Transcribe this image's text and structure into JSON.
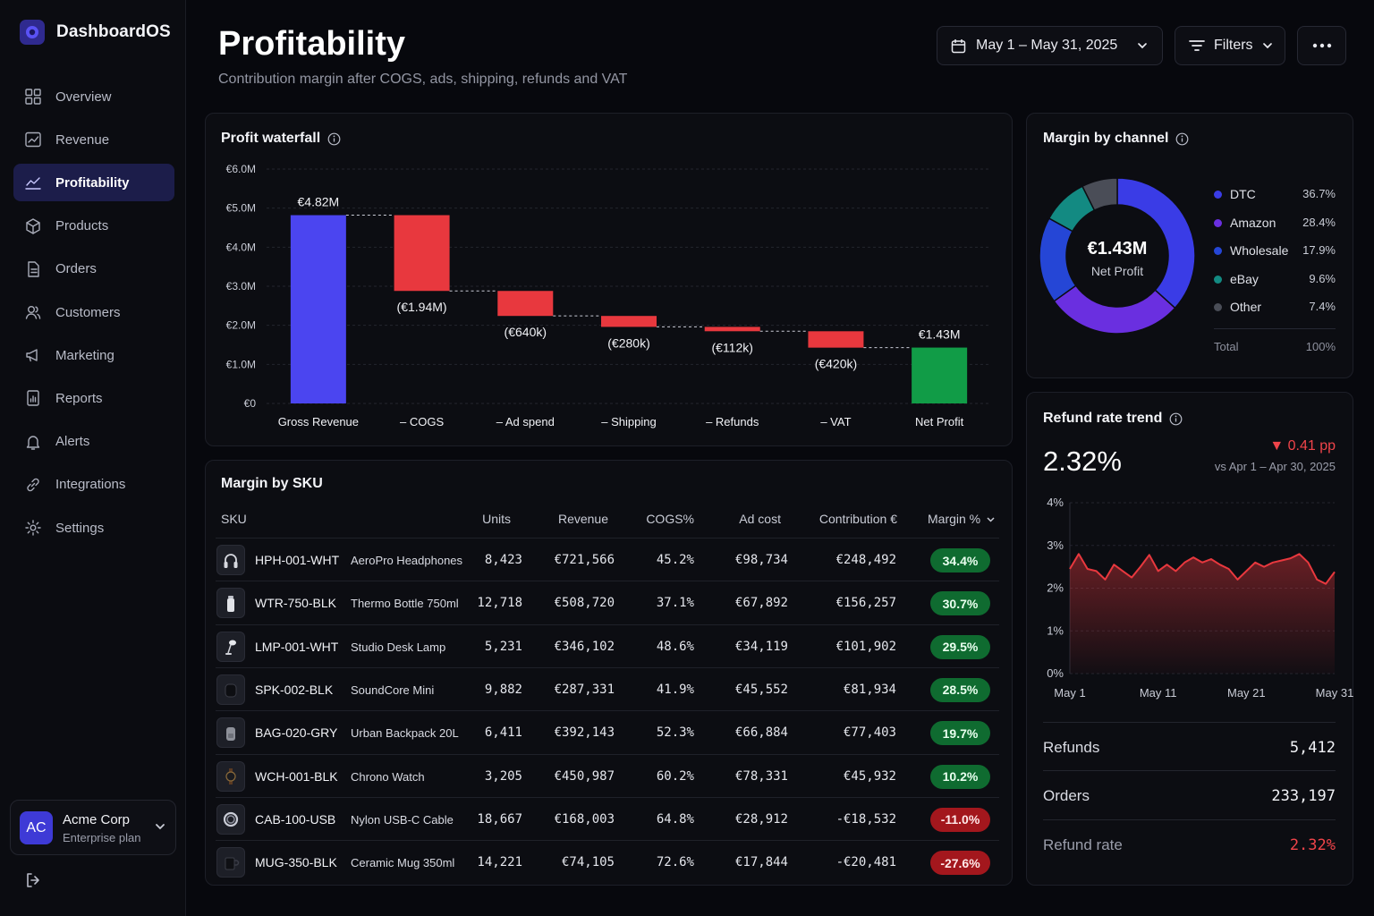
{
  "app": {
    "name": "DashboardOS"
  },
  "sidebar": {
    "items": [
      {
        "label": "Overview",
        "icon": "grid-icon"
      },
      {
        "label": "Revenue",
        "icon": "revenue-chart-icon"
      },
      {
        "label": "Profitability",
        "icon": "trend-line-icon",
        "active": true
      },
      {
        "label": "Products",
        "icon": "box-icon"
      },
      {
        "label": "Orders",
        "icon": "document-icon"
      },
      {
        "label": "Customers",
        "icon": "users-icon"
      },
      {
        "label": "Marketing",
        "icon": "megaphone-icon"
      },
      {
        "label": "Reports",
        "icon": "report-icon"
      },
      {
        "label": "Alerts",
        "icon": "bell-icon"
      },
      {
        "label": "Integrations",
        "icon": "link-icon"
      },
      {
        "label": "Settings",
        "icon": "gear-icon"
      }
    ],
    "account": {
      "initials": "AC",
      "name": "Acme Corp",
      "plan": "Enterprise plan"
    }
  },
  "header": {
    "title": "Profitability",
    "subtitle": "Contribution margin after COGS, ads, shipping, refunds and VAT",
    "date_range": "May 1 – May 31, 2025",
    "filters_label": "Filters"
  },
  "waterfall": {
    "title": "Profit waterfall",
    "chart_data": {
      "type": "bar",
      "subtype": "waterfall",
      "categories": [
        "Gross Revenue",
        "– COGS",
        "– Ad spend",
        "– Shipping",
        "– Refunds",
        "– VAT",
        "Net Profit"
      ],
      "values": [
        4.82,
        -1.94,
        -0.64,
        -0.28,
        -0.112,
        -0.42,
        1.43
      ],
      "unit": "€M",
      "data_labels": [
        "€4.82M",
        "(€1.94M)",
        "(€640k)",
        "(€280k)",
        "(€112k)",
        "(€420k)",
        "€1.43M"
      ],
      "y_ticks": [
        "€0",
        "€1.0M",
        "€2.0M",
        "€3.0M",
        "€4.0M",
        "€5.0M",
        "€6.0M"
      ],
      "ylim": [
        0,
        6
      ],
      "grid": true,
      "colors": {
        "total": "#4b45f0",
        "decrease": "#e8383e",
        "result": "#119c47"
      }
    }
  },
  "channel": {
    "title": "Margin by channel",
    "center_value": "€1.43M",
    "center_label": "Net Profit",
    "total_label": "Total",
    "total_value": "100%",
    "chart_data": {
      "type": "pie",
      "subtype": "donut",
      "categories": [
        "DTC",
        "Amazon",
        "Wholesale",
        "eBay",
        "Other"
      ],
      "values": [
        36.7,
        28.4,
        17.9,
        9.6,
        7.4
      ],
      "display": [
        "36.7%",
        "28.4%",
        "17.9%",
        "9.6%",
        "7.4%"
      ],
      "colors": [
        "#3a3ce6",
        "#6a2fe0",
        "#2546d6",
        "#138a82",
        "#4a4d57"
      ]
    }
  },
  "sku_table": {
    "title": "Margin by SKU",
    "columns": [
      "SKU",
      "Units",
      "Revenue",
      "COGS%",
      "Ad cost",
      "Contribution €",
      "Margin %"
    ],
    "rows": [
      {
        "sku": "HPH-001-WHT",
        "product": "AeroPro Headphones",
        "units": "8,423",
        "revenue": "€721,566",
        "cogs": "45.2%",
        "ad_cost": "€98,734",
        "contribution": "€248,492",
        "margin": "34.4%",
        "margin_sign": "pos",
        "thumb_icon": "headphones-icon"
      },
      {
        "sku": "WTR-750-BLK",
        "product": "Thermo Bottle 750ml",
        "units": "12,718",
        "revenue": "€508,720",
        "cogs": "37.1%",
        "ad_cost": "€67,892",
        "contribution": "€156,257",
        "margin": "30.7%",
        "margin_sign": "pos",
        "thumb_icon": "bottle-icon"
      },
      {
        "sku": "LMP-001-WHT",
        "product": "Studio Desk Lamp",
        "units": "5,231",
        "revenue": "€346,102",
        "cogs": "48.6%",
        "ad_cost": "€34,119",
        "contribution": "€101,902",
        "margin": "29.5%",
        "margin_sign": "pos",
        "thumb_icon": "lamp-icon"
      },
      {
        "sku": "SPK-002-BLK",
        "product": "SoundCore Mini",
        "units": "9,882",
        "revenue": "€287,331",
        "cogs": "41.9%",
        "ad_cost": "€45,552",
        "contribution": "€81,934",
        "margin": "28.5%",
        "margin_sign": "pos",
        "thumb_icon": "speaker-icon"
      },
      {
        "sku": "BAG-020-GRY",
        "product": "Urban Backpack 20L",
        "units": "6,411",
        "revenue": "€392,143",
        "cogs": "52.3%",
        "ad_cost": "€66,884",
        "contribution": "€77,403",
        "margin": "19.7%",
        "margin_sign": "pos",
        "thumb_icon": "backpack-icon"
      },
      {
        "sku": "WCH-001-BLK",
        "product": "Chrono Watch",
        "units": "3,205",
        "revenue": "€450,987",
        "cogs": "60.2%",
        "ad_cost": "€78,331",
        "contribution": "€45,932",
        "margin": "10.2%",
        "margin_sign": "pos",
        "thumb_icon": "watch-icon"
      },
      {
        "sku": "CAB-100-USB",
        "product": "Nylon USB-C Cable",
        "units": "18,667",
        "revenue": "€168,003",
        "cogs": "64.8%",
        "ad_cost": "€28,912",
        "contribution": "-€18,532",
        "margin": "-11.0%",
        "margin_sign": "neg",
        "thumb_icon": "cable-icon"
      },
      {
        "sku": "MUG-350-BLK",
        "product": "Ceramic Mug 350ml",
        "units": "14,221",
        "revenue": "€74,105",
        "cogs": "72.6%",
        "ad_cost": "€17,844",
        "contribution": "-€20,481",
        "margin": "-27.6%",
        "margin_sign": "neg",
        "thumb_icon": "mug-icon"
      }
    ]
  },
  "refund": {
    "title": "Refund rate trend",
    "current": "2.32%",
    "delta": "▼ 0.41 pp",
    "compare": "vs Apr 1 – Apr 30, 2025",
    "chart_data": {
      "type": "area",
      "x": [
        "May 1",
        "May 2",
        "May 3",
        "May 4",
        "May 5",
        "May 6",
        "May 7",
        "May 8",
        "May 9",
        "May 10",
        "May 11",
        "May 12",
        "May 13",
        "May 14",
        "May 15",
        "May 16",
        "May 17",
        "May 18",
        "May 19",
        "May 20",
        "May 21",
        "May 22",
        "May 23",
        "May 24",
        "May 25",
        "May 26",
        "May 27",
        "May 28",
        "May 29",
        "May 30",
        "May 31"
      ],
      "values": [
        2.45,
        2.8,
        2.45,
        2.4,
        2.2,
        2.55,
        2.4,
        2.25,
        2.5,
        2.78,
        2.4,
        2.55,
        2.4,
        2.6,
        2.72,
        2.6,
        2.68,
        2.55,
        2.45,
        2.2,
        2.4,
        2.6,
        2.5,
        2.6,
        2.65,
        2.7,
        2.8,
        2.6,
        2.2,
        2.1,
        2.38
      ],
      "x_ticks": [
        "May 1",
        "May 11",
        "May 21",
        "May 31"
      ],
      "y_ticks": [
        "0%",
        "1%",
        "2%",
        "3%",
        "4%"
      ],
      "ylim": [
        0,
        4
      ],
      "color": "#e8383e",
      "grid": true
    },
    "stats": [
      {
        "label": "Refunds",
        "value": "5,412"
      },
      {
        "label": "Orders",
        "value": "233,197"
      },
      {
        "label": "Refund rate",
        "value": "2.32%",
        "highlight": true
      }
    ]
  }
}
